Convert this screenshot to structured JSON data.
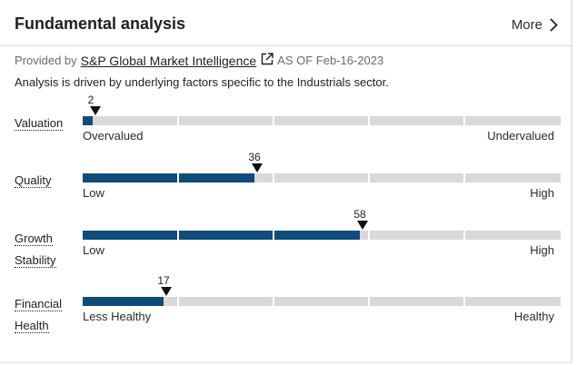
{
  "header": {
    "title": "Fundamental analysis",
    "more_label": "More"
  },
  "provider": {
    "prefix": "Provided by",
    "link_text": "S&P Global Market Intelligence",
    "as_of": "AS OF Feb-16-2023"
  },
  "description": "Analysis is driven by underlying factors specific to the Industrials sector.",
  "metrics": [
    {
      "label": "Valuation",
      "value": 2,
      "value_text": "2",
      "low": "Overvalued",
      "high": "Undervalued"
    },
    {
      "label": "Quality",
      "value": 36,
      "value_text": "36",
      "low": "Low",
      "high": "High"
    },
    {
      "label_line1": "Growth",
      "label_line2": "Stability",
      "value": 58,
      "value_text": "58",
      "low": "Low",
      "high": "High"
    },
    {
      "label_line1": "Financial",
      "label_line2": "Health",
      "value": 17,
      "value_text": "17",
      "low": "Less Healthy",
      "high": "Healthy"
    }
  ],
  "colors": {
    "fill": "#0e4c7a",
    "track": "#d9d9d9"
  }
}
